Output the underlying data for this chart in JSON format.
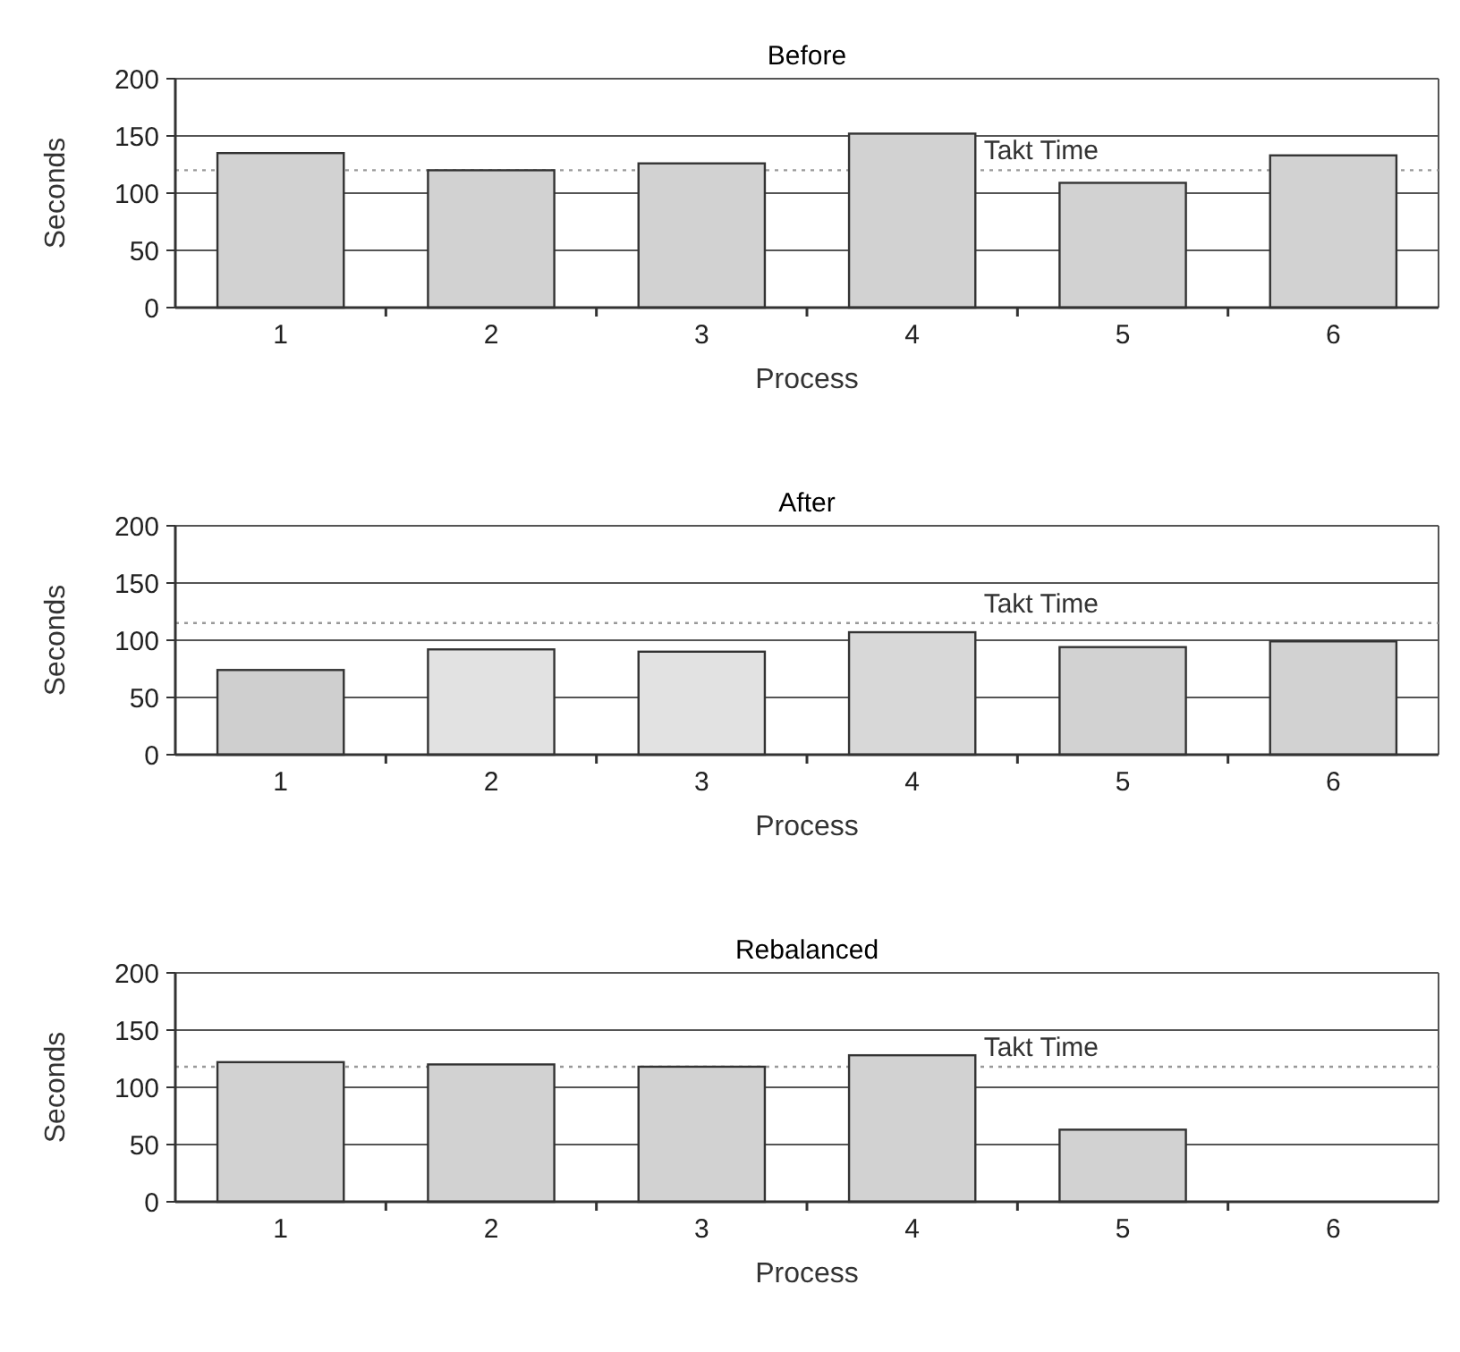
{
  "chart_data": [
    {
      "type": "bar",
      "title": "Before",
      "xlabel": "Process",
      "ylabel": "Seconds",
      "categories": [
        "1",
        "2",
        "3",
        "4",
        "5",
        "6"
      ],
      "values": [
        135,
        120,
        126,
        152,
        109,
        133
      ],
      "color": "#d2d2d2",
      "ylim": [
        0,
        200
      ],
      "yticks": [
        0,
        50,
        100,
        150,
        200
      ],
      "grid": "y",
      "ref_lines": [
        {
          "axis": "y",
          "value": 120,
          "label": "Takt Time",
          "color": "#999999",
          "line_style": "dotted"
        }
      ]
    },
    {
      "type": "bar",
      "title": "After",
      "xlabel": "Process",
      "ylabel": "Seconds",
      "categories": [
        "1",
        "2",
        "3",
        "4",
        "5",
        "6"
      ],
      "values": [
        74,
        92,
        90,
        107,
        94,
        99
      ],
      "colors": [
        "#cfcfcf",
        "#e2e2e2",
        "#e2e2e2",
        "#d8d8d8",
        "#d2d2d2",
        "#d2d2d2"
      ],
      "ylim": [
        0,
        200
      ],
      "yticks": [
        0,
        50,
        100,
        150,
        200
      ],
      "grid": "y",
      "ref_lines": [
        {
          "axis": "y",
          "value": 115,
          "label": "Takt Time",
          "color": "#999999",
          "line_style": "dotted"
        }
      ]
    },
    {
      "type": "bar",
      "title": "Rebalanced",
      "xlabel": "Process",
      "ylabel": "Seconds",
      "categories": [
        "1",
        "2",
        "3",
        "4",
        "5",
        "6"
      ],
      "values": [
        122,
        120,
        118,
        128,
        63,
        null
      ],
      "color": "#d2d2d2",
      "ylim": [
        0,
        200
      ],
      "yticks": [
        0,
        50,
        100,
        150,
        200
      ],
      "grid": "y",
      "ref_lines": [
        {
          "axis": "y",
          "value": 118,
          "label": "Takt Time",
          "color": "#999999",
          "line_style": "dotted"
        }
      ]
    }
  ]
}
